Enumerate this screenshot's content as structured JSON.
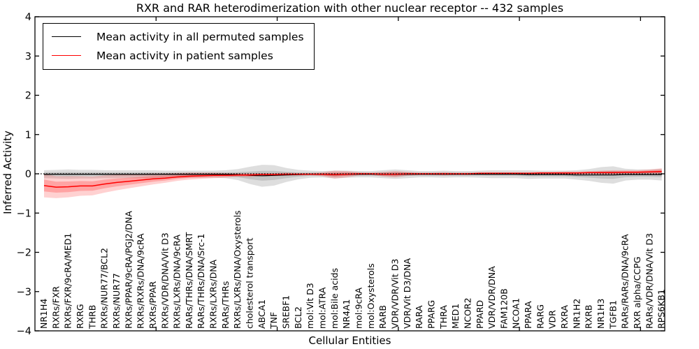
{
  "title": "RXR and RAR heterodimerization with other nuclear receptor -- 432 samples",
  "axes": {
    "ylabel": "Inferred Activity",
    "xlabel": "Cellular Entities",
    "ytick_values": [
      4,
      3,
      2,
      1,
      0,
      -1,
      -2,
      -3,
      -4
    ],
    "ytick_labels": [
      "4",
      "3",
      "2",
      "1",
      "0",
      "−1",
      "−2",
      "−3",
      "−4"
    ],
    "xtick_values": [
      10,
      20,
      30,
      40,
      50
    ],
    "ylim": [
      -4,
      4
    ],
    "xlim": [
      0,
      52
    ]
  },
  "legend": {
    "entries": [
      {
        "label": "Mean activity in all permuted samples",
        "color": "#000000"
      },
      {
        "label": "Mean activity in patient samples",
        "color": "#ff0000"
      }
    ]
  },
  "colors": {
    "permuted_line": "#000000",
    "patient_line": "#ff0000",
    "permuted_band": "rgba(0,0,0,0.13)",
    "permuted_band_inner": "rgba(0,0,0,0.12)",
    "patient_band": "rgba(255,0,0,0.18)",
    "patient_band_inner": "rgba(255,0,0,0.22)",
    "zero_line": "#000000",
    "frame": "#000000"
  },
  "chart_data": {
    "type": "line",
    "title": "RXR and RAR heterodimerization with other nuclear receptor -- 432 samples",
    "xlabel": "Cellular Entities",
    "ylabel": "Inferred Activity",
    "ylim": [
      -4,
      4
    ],
    "grid": false,
    "legend_position": "upper left",
    "categories": [
      "NR1H4",
      "RXRs/FXR",
      "RXRs/FXR/9cRA/MED1",
      "RXRG",
      "THRB",
      "RXRs/NUR77/BCL2",
      "RXRs/NUR77",
      "RXRs/PPAR/9cRA/PGJ2/DNA",
      "RXRs/RXRs/DNA/9cRA",
      "RXRs/PPAR",
      "RXRs/VDR/DNA/Vit D3",
      "RXRs/LXRs/DNA/9cRA",
      "RARs/THRs/DNA/SMRT",
      "RARs/THRs/DNA/Src-1",
      "RXRs/LXRs/DNA",
      "RARs/THRs",
      "RXRs/LXRs/DNA/Oxysterols",
      "cholesterol transport",
      "ABCA1",
      "TNF",
      "SREBF1",
      "BCL2",
      "mol:Vit D3",
      "mol:ATRA",
      "mol:Bile acids",
      "NR4A1",
      "mol:9cRA",
      "mol:Oxysterols",
      "RARB",
      "VDR/VDR/Vit D3",
      "VDR/Vit D3/DNA",
      "RARA",
      "PPARG",
      "THRA",
      "MED1",
      "NCOR2",
      "PPARD",
      "VDR/VDR/DNA",
      "FAM120B",
      "NCOA1",
      "PPARA",
      "RARG",
      "VDR",
      "RXRA",
      "NR1H2",
      "RXRB",
      "NR1H3",
      "TGFB1",
      "RARs/RARs/DNA/9cRA",
      "RXR alpha/CCPG",
      "RARs/VDR/DNA/Vit D3",
      "RPS6KB1"
    ],
    "series": [
      {
        "name": "Mean activity in all permuted samples",
        "color": "#000000",
        "values": [
          -0.01,
          -0.01,
          -0.01,
          -0.01,
          -0.01,
          -0.01,
          -0.01,
          -0.01,
          -0.01,
          -0.01,
          -0.01,
          -0.01,
          -0.01,
          -0.01,
          -0.01,
          -0.01,
          -0.02,
          -0.04,
          -0.05,
          -0.04,
          -0.03,
          -0.02,
          -0.01,
          -0.01,
          -0.02,
          -0.01,
          -0.01,
          -0.01,
          -0.01,
          -0.01,
          -0.01,
          -0.01,
          -0.01,
          -0.01,
          -0.01,
          -0.01,
          -0.01,
          -0.01,
          -0.01,
          -0.01,
          -0.02,
          -0.02,
          -0.02,
          -0.02,
          -0.03,
          -0.03,
          -0.03,
          -0.03,
          -0.02,
          -0.02,
          -0.02,
          -0.02
        ],
        "band_halfwidth": [
          0.1,
          0.11,
          0.12,
          0.11,
          0.11,
          0.1,
          0.1,
          0.1,
          0.1,
          0.1,
          0.09,
          0.09,
          0.09,
          0.09,
          0.09,
          0.1,
          0.14,
          0.22,
          0.28,
          0.26,
          0.18,
          0.12,
          0.09,
          0.08,
          0.1,
          0.09,
          0.08,
          0.08,
          0.1,
          0.12,
          0.1,
          0.08,
          0.08,
          0.09,
          0.08,
          0.08,
          0.09,
          0.1,
          0.1,
          0.1,
          0.11,
          0.1,
          0.1,
          0.1,
          0.12,
          0.15,
          0.2,
          0.22,
          0.15,
          0.13,
          0.13,
          0.15
        ]
      },
      {
        "name": "Mean activity in patient samples",
        "color": "#ff0000",
        "values": [
          -0.3,
          -0.34,
          -0.33,
          -0.31,
          -0.31,
          -0.26,
          -0.22,
          -0.19,
          -0.16,
          -0.13,
          -0.11,
          -0.08,
          -0.06,
          -0.05,
          -0.04,
          -0.04,
          -0.03,
          -0.03,
          -0.02,
          -0.02,
          -0.01,
          -0.01,
          -0.01,
          -0.01,
          -0.02,
          -0.01,
          0.0,
          0.0,
          -0.01,
          -0.01,
          0.0,
          0.0,
          0.0,
          0.0,
          0.0,
          0.0,
          0.01,
          0.01,
          0.01,
          0.01,
          0.01,
          0.02,
          0.02,
          0.02,
          0.02,
          0.03,
          0.03,
          0.03,
          0.04,
          0.04,
          0.05,
          0.06
        ],
        "band_halfwidth": [
          0.3,
          0.28,
          0.27,
          0.25,
          0.24,
          0.22,
          0.2,
          0.18,
          0.16,
          0.14,
          0.12,
          0.1,
          0.09,
          0.08,
          0.07,
          0.06,
          0.05,
          0.05,
          0.04,
          0.04,
          0.04,
          0.03,
          0.03,
          0.05,
          0.1,
          0.08,
          0.04,
          0.03,
          0.06,
          0.08,
          0.05,
          0.03,
          0.03,
          0.04,
          0.03,
          0.03,
          0.03,
          0.03,
          0.03,
          0.03,
          0.03,
          0.03,
          0.03,
          0.04,
          0.04,
          0.04,
          0.05,
          0.06,
          0.05,
          0.05,
          0.06,
          0.08
        ]
      }
    ],
    "zero_line": {
      "value": 0,
      "style": "dotted",
      "color": "#000000"
    }
  }
}
